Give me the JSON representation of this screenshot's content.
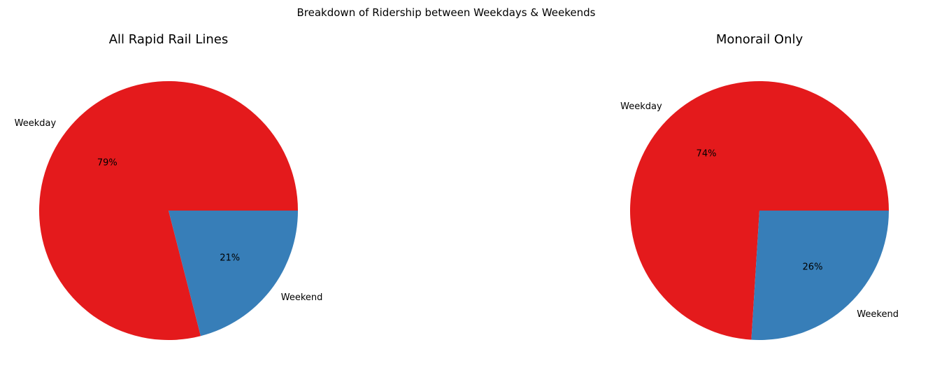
{
  "figure": {
    "title": "Breakdown of Ridership between Weekdays & Weekends"
  },
  "colors": {
    "weekday": "#e41a1c",
    "weekend": "#377eb8"
  },
  "chart_data": [
    {
      "type": "pie",
      "title": "All Rapid Rail Lines",
      "categories": [
        "Weekday",
        "Weekend"
      ],
      "values": [
        79,
        21
      ],
      "value_labels": [
        "79%",
        "21%"
      ],
      "start_angle": 0,
      "direction": "counterclockwise"
    },
    {
      "type": "pie",
      "title": "Monorail Only",
      "categories": [
        "Weekday",
        "Weekend"
      ],
      "values": [
        74,
        26
      ],
      "value_labels": [
        "74%",
        "26%"
      ],
      "start_angle": 0,
      "direction": "counterclockwise"
    }
  ]
}
